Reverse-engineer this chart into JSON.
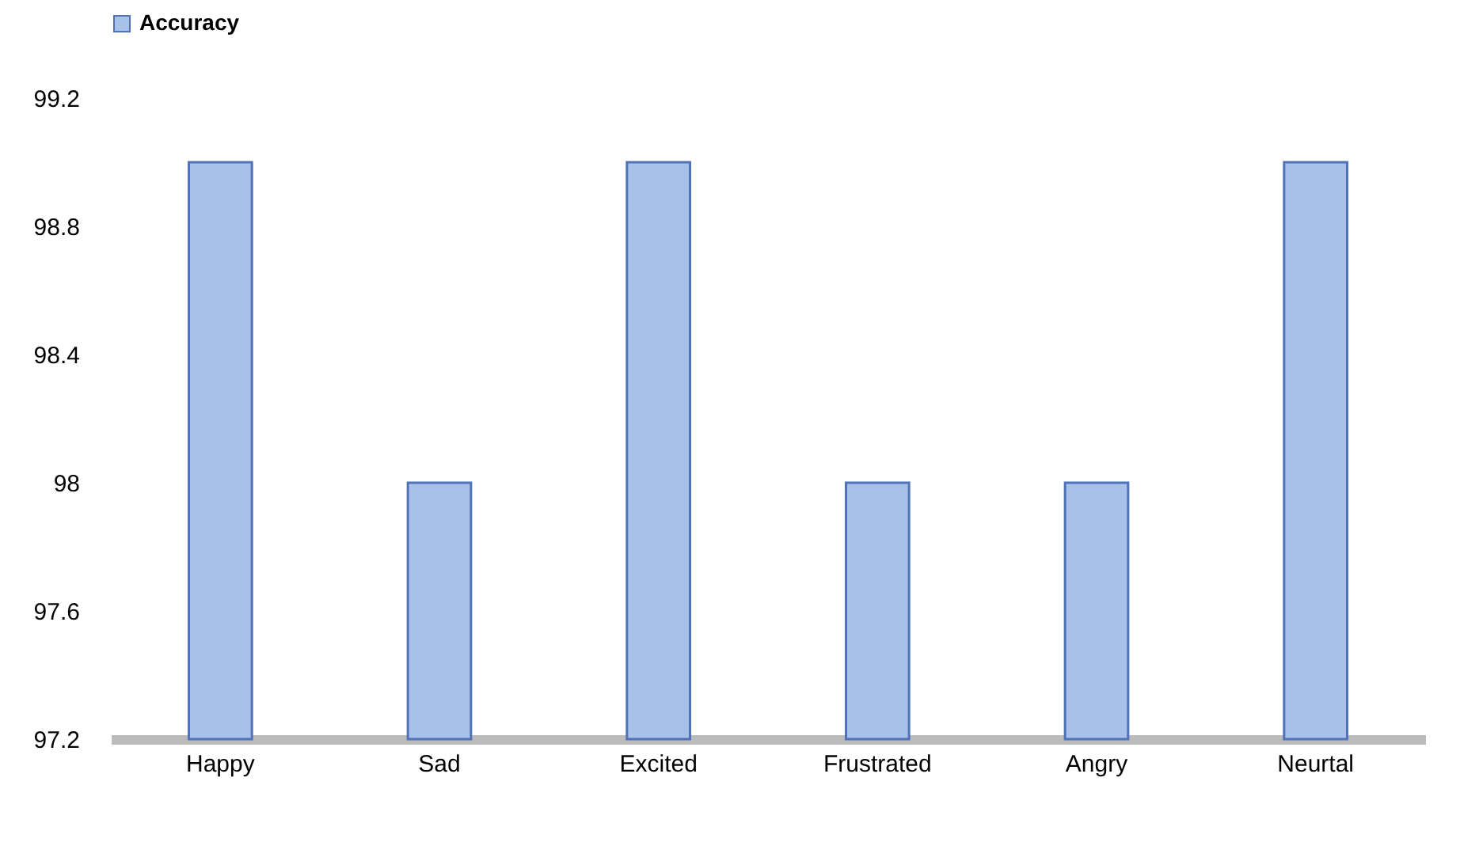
{
  "chart_data": {
    "type": "bar",
    "categories": [
      "Happy",
      "Sad",
      "Excited",
      "Frustrated",
      "Angry",
      "Neurtal"
    ],
    "series": [
      {
        "name": "Accuracy",
        "color": "#a8c1e8",
        "values": [
          99,
          98,
          99,
          98,
          98,
          99
        ]
      }
    ],
    "ylim": [
      97.2,
      99.2
    ],
    "yticks": [
      97.2,
      97.6,
      98,
      98.4,
      98.8,
      99.2
    ],
    "grid": false,
    "legend": "top"
  }
}
